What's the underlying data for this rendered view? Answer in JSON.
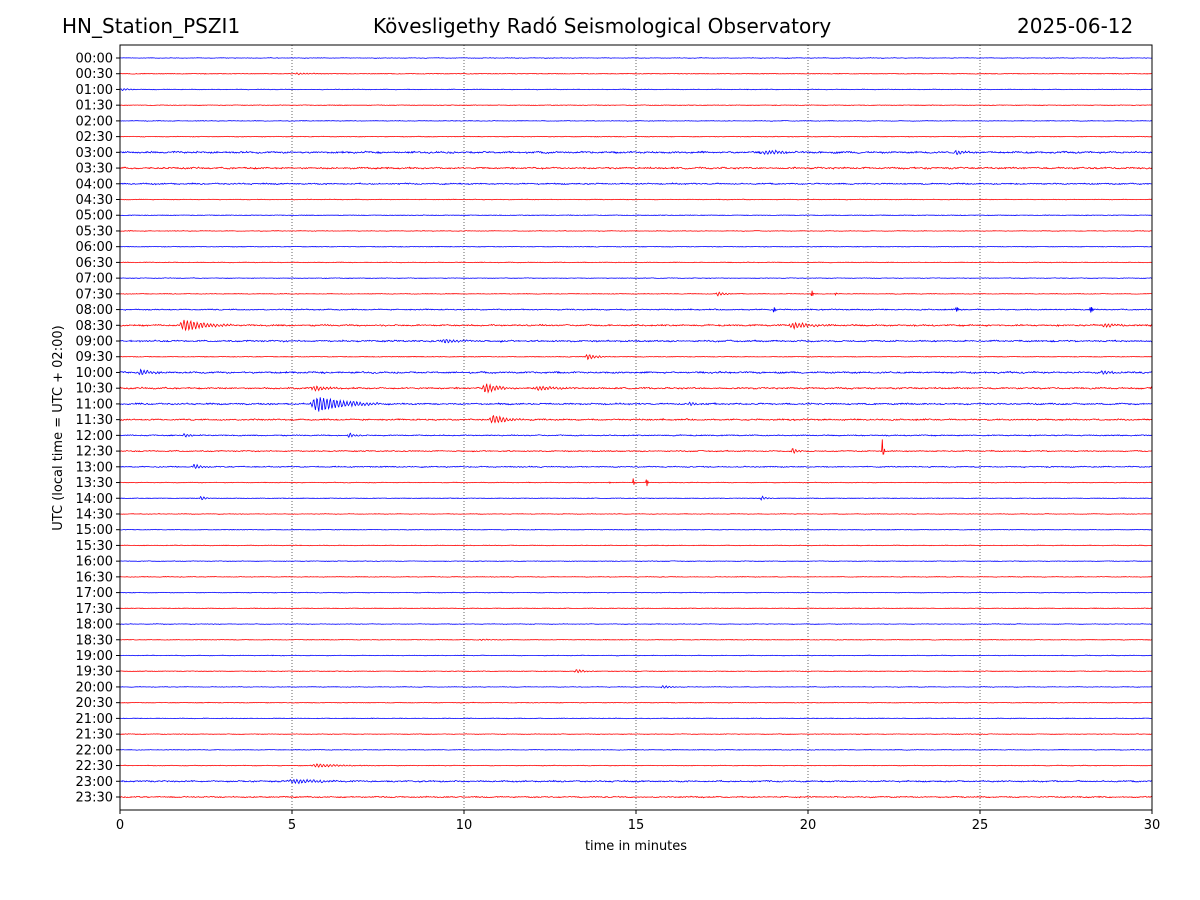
{
  "header": {
    "station": "HN_Station_PSZI1",
    "observatory": "Kövesligethy Radó Seismological Observatory",
    "date": "2025-06-12"
  },
  "chart_data": {
    "type": "line",
    "title": "Kövesligethy Radó Seismological Observatory",
    "xlabel": "time in minutes",
    "ylabel": "UTC (local time = UTC + 02:00)",
    "xlim": [
      0,
      30
    ],
    "xticks": [
      0,
      5,
      10,
      15,
      20,
      25,
      30
    ],
    "grid": "vertical dotted at 5-minute ticks",
    "colors": [
      "#0000ff",
      "#ff0000"
    ],
    "amplitude_units": "relative",
    "traces": [
      "00:00",
      "00:30",
      "01:00",
      "01:30",
      "02:00",
      "02:30",
      "03:00",
      "03:30",
      "04:00",
      "04:30",
      "05:00",
      "05:30",
      "06:00",
      "06:30",
      "07:00",
      "07:30",
      "08:00",
      "08:30",
      "09:00",
      "09:30",
      "10:00",
      "10:30",
      "11:00",
      "11:30",
      "12:00",
      "12:30",
      "13:00",
      "13:30",
      "14:00",
      "14:30",
      "15:00",
      "15:30",
      "16:00",
      "16:30",
      "17:00",
      "17:30",
      "18:00",
      "18:30",
      "19:00",
      "19:30",
      "20:00",
      "20:30",
      "21:00",
      "21:30",
      "22:00",
      "22:30",
      "23:00",
      "23:30"
    ],
    "background_noise": {
      "6": 1.6,
      "7": 1.5,
      "8": 1.2,
      "16": 1.0,
      "17": 1.4,
      "18": 1.4,
      "20": 1.5,
      "21": 1.4,
      "22": 1.4,
      "23": 1.3,
      "24": 1.0,
      "25": 1.0,
      "26": 1.0,
      "46": 1.3,
      "47": 1.1,
      "default": 0.55
    },
    "events": [
      {
        "trace": 1,
        "start": 5.0,
        "duration": 1.3,
        "amp": 1.2
      },
      {
        "trace": 2,
        "start": 0.0,
        "duration": 0.6,
        "amp": 1.6
      },
      {
        "trace": 6,
        "start": 18.6,
        "duration": 1.5,
        "amp": 2.5
      },
      {
        "trace": 6,
        "start": 24.2,
        "duration": 0.8,
        "amp": 3
      },
      {
        "trace": 15,
        "start": 17.3,
        "duration": 0.6,
        "amp": 3
      },
      {
        "trace": 15,
        "start": 20.1,
        "duration": 0.05,
        "amp": 4
      },
      {
        "trace": 15,
        "start": 20.8,
        "duration": 0.05,
        "amp": 4
      },
      {
        "trace": 16,
        "start": 19.0,
        "duration": 0.1,
        "amp": 7
      },
      {
        "trace": 16,
        "start": 24.3,
        "duration": 0.15,
        "amp": 4
      },
      {
        "trace": 16,
        "start": 28.2,
        "duration": 0.1,
        "amp": 3
      },
      {
        "trace": 17,
        "start": 1.7,
        "duration": 1.6,
        "amp": 8
      },
      {
        "trace": 17,
        "start": 19.4,
        "duration": 1.6,
        "amp": 4
      },
      {
        "trace": 17,
        "start": 28.5,
        "duration": 1.0,
        "amp": 3
      },
      {
        "trace": 18,
        "start": 9.3,
        "duration": 1.2,
        "amp": 3
      },
      {
        "trace": 19,
        "start": 13.5,
        "duration": 0.8,
        "amp": 4
      },
      {
        "trace": 20,
        "start": 0.5,
        "duration": 1.0,
        "amp": 4
      },
      {
        "trace": 20,
        "start": 28.5,
        "duration": 0.8,
        "amp": 3
      },
      {
        "trace": 21,
        "start": 5.5,
        "duration": 1.5,
        "amp": 3
      },
      {
        "trace": 21,
        "start": 10.5,
        "duration": 1.0,
        "amp": 7
      },
      {
        "trace": 21,
        "start": 12.0,
        "duration": 1.5,
        "amp": 3
      },
      {
        "trace": 22,
        "start": 5.5,
        "duration": 2.2,
        "amp": 11
      },
      {
        "trace": 22,
        "start": 16.5,
        "duration": 0.6,
        "amp": 3
      },
      {
        "trace": 23,
        "start": 10.7,
        "duration": 1.2,
        "amp": 6
      },
      {
        "trace": 24,
        "start": 1.8,
        "duration": 0.6,
        "amp": 3
      },
      {
        "trace": 24,
        "start": 6.6,
        "duration": 0.5,
        "amp": 4
      },
      {
        "trace": 25,
        "start": 19.5,
        "duration": 0.4,
        "amp": 5
      },
      {
        "trace": 25,
        "start": 22.15,
        "duration": 0.06,
        "amp": 70
      },
      {
        "trace": 26,
        "start": 2.1,
        "duration": 0.5,
        "amp": 4
      },
      {
        "trace": 27,
        "start": 14.2,
        "duration": 0.05,
        "amp": 5
      },
      {
        "trace": 27,
        "start": 14.9,
        "duration": 0.05,
        "amp": 5
      },
      {
        "trace": 27,
        "start": 15.3,
        "duration": 0.05,
        "amp": 4
      },
      {
        "trace": 28,
        "start": 2.3,
        "duration": 0.4,
        "amp": 3
      },
      {
        "trace": 28,
        "start": 18.6,
        "duration": 0.4,
        "amp": 3
      },
      {
        "trace": 37,
        "start": 10.4,
        "duration": 0.8,
        "amp": 1.2
      },
      {
        "trace": 39,
        "start": 13.2,
        "duration": 0.6,
        "amp": 3
      },
      {
        "trace": 40,
        "start": 15.7,
        "duration": 0.7,
        "amp": 2
      },
      {
        "trace": 45,
        "start": 5.5,
        "duration": 2.0,
        "amp": 2.5
      },
      {
        "trace": 46,
        "start": 4.8,
        "duration": 2.5,
        "amp": 3
      }
    ]
  }
}
